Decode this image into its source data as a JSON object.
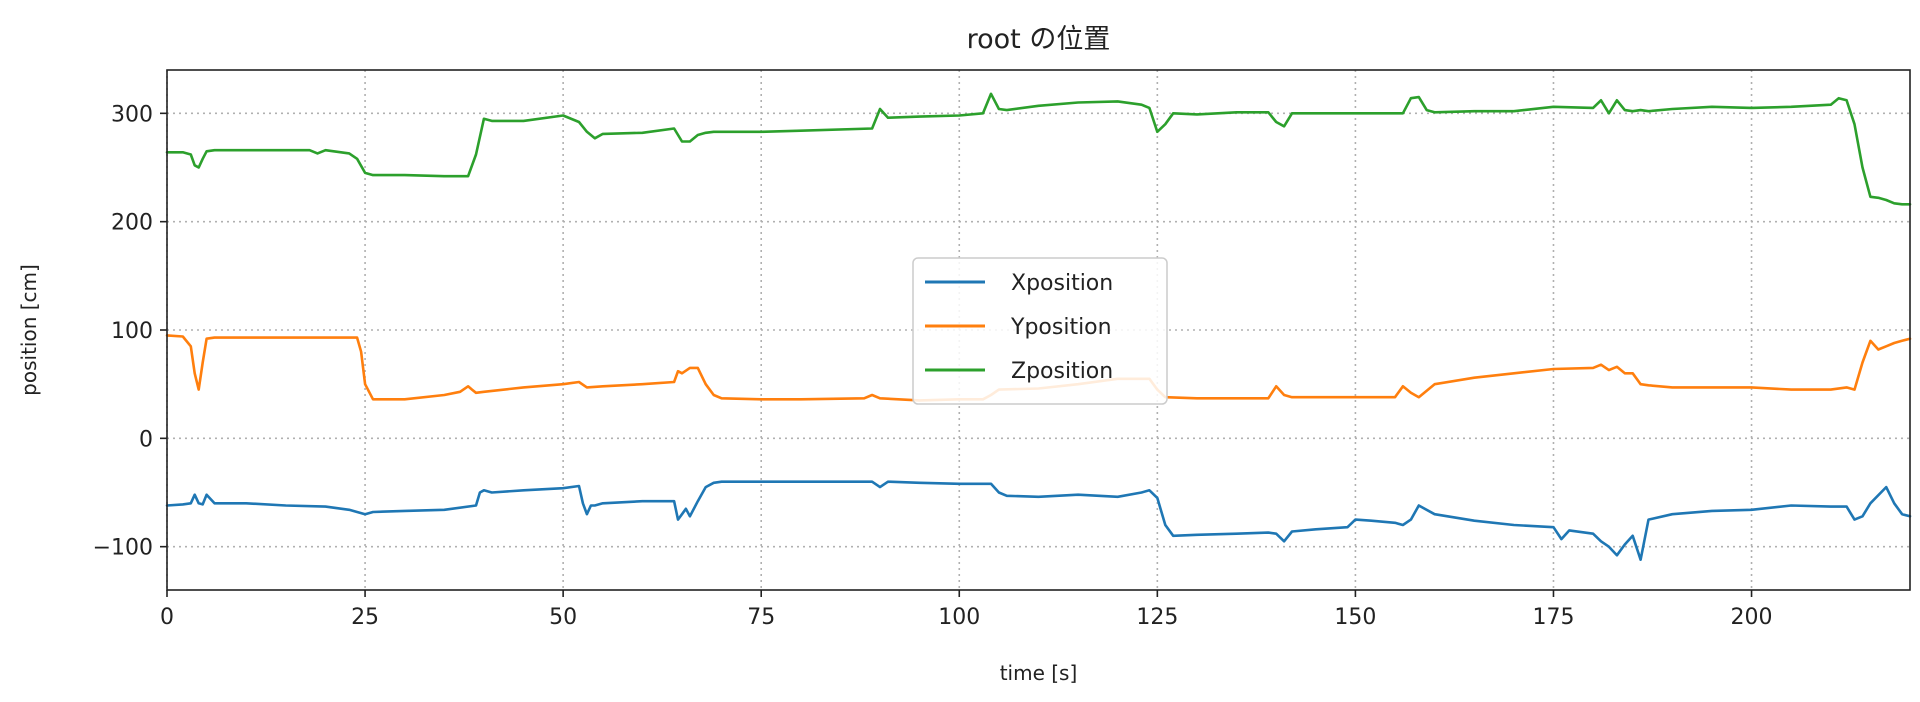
{
  "chart_data": {
    "type": "line",
    "title": "root の位置",
    "xlabel": "time [s]",
    "ylabel": "position [cm]",
    "xlim": [
      0,
      220
    ],
    "ylim": [
      -140,
      340
    ],
    "xticks": [
      0,
      25,
      50,
      75,
      100,
      125,
      150,
      175,
      200
    ],
    "yticks": [
      -100,
      0,
      100,
      200,
      300
    ],
    "xtick_labels": [
      "0",
      "25",
      "50",
      "75",
      "100",
      "125",
      "150",
      "175",
      "200"
    ],
    "ytick_labels": [
      "−100",
      "0",
      "100",
      "200",
      "300"
    ],
    "grid": true,
    "legend_position": "center",
    "series": [
      {
        "name": "Xposition",
        "color": "#1f77b4",
        "x": [
          0,
          2,
          3,
          3.5,
          4,
          4.5,
          5,
          6,
          10,
          15,
          20,
          23,
          24,
          25,
          26,
          30,
          35,
          39,
          39.5,
          40,
          41,
          45,
          50,
          52,
          52.5,
          53,
          53.5,
          54,
          55,
          60,
          64,
          64.5,
          65,
          65.5,
          66,
          67,
          68,
          69,
          70,
          75,
          80,
          89,
          90,
          91,
          95,
          100,
          104,
          105,
          106,
          110,
          115,
          120,
          123,
          124,
          125,
          126,
          127,
          130,
          135,
          139,
          140,
          141,
          142,
          145,
          149,
          150,
          152,
          155,
          156,
          157,
          158,
          160,
          165,
          170,
          175,
          176,
          177,
          180,
          181,
          182,
          183,
          184,
          185,
          186,
          187,
          190,
          195,
          200,
          205,
          210,
          212,
          213,
          214,
          215,
          217,
          218,
          219,
          220
        ],
        "y": [
          -62,
          -61,
          -60,
          -52,
          -60,
          -61,
          -52,
          -60,
          -60,
          -62,
          -63,
          -66,
          -68,
          -70,
          -68,
          -67,
          -66,
          -62,
          -50,
          -48,
          -50,
          -48,
          -46,
          -44,
          -60,
          -70,
          -62,
          -62,
          -60,
          -58,
          -58,
          -75,
          -70,
          -65,
          -72,
          -58,
          -45,
          -41,
          -40,
          -40,
          -40,
          -40,
          -45,
          -40,
          -41,
          -42,
          -42,
          -50,
          -53,
          -54,
          -52,
          -54,
          -50,
          -48,
          -55,
          -80,
          -90,
          -89,
          -88,
          -87,
          -88,
          -95,
          -86,
          -84,
          -82,
          -75,
          -76,
          -78,
          -80,
          -75,
          -62,
          -70,
          -76,
          -80,
          -82,
          -93,
          -85,
          -88,
          -95,
          -100,
          -108,
          -98,
          -90,
          -112,
          -75,
          -70,
          -67,
          -66,
          -62,
          -63,
          -63,
          -75,
          -72,
          -60,
          -45,
          -60,
          -70,
          -72
        ]
      },
      {
        "name": "Yposition",
        "color": "#ff7f0e",
        "x": [
          0,
          2,
          3,
          3.5,
          4,
          4.5,
          5,
          6,
          10,
          15,
          20,
          23,
          24,
          24.5,
          25,
          26,
          30,
          35,
          37,
          38,
          38.5,
          39,
          40,
          45,
          50,
          52,
          53,
          55,
          60,
          64,
          64.5,
          65,
          66,
          67,
          68,
          69,
          70,
          75,
          80,
          88,
          89,
          90,
          95,
          100,
          103,
          104,
          105,
          110,
          115,
          120,
          124,
          125,
          126,
          130,
          135,
          139,
          140,
          141,
          142,
          145,
          150,
          155,
          156,
          157,
          158,
          160,
          165,
          170,
          175,
          180,
          181,
          182,
          183,
          184,
          185,
          186,
          187,
          190,
          195,
          200,
          205,
          210,
          212,
          213,
          214,
          215,
          216,
          217,
          218,
          219,
          220
        ],
        "y": [
          95,
          94,
          85,
          60,
          45,
          70,
          92,
          93,
          93,
          93,
          93,
          93,
          93,
          80,
          50,
          36,
          36,
          40,
          43,
          48,
          45,
          42,
          43,
          47,
          50,
          52,
          47,
          48,
          50,
          52,
          62,
          60,
          65,
          65,
          50,
          40,
          37,
          36,
          36,
          37,
          40,
          37,
          35,
          36,
          36,
          40,
          45,
          46,
          50,
          55,
          55,
          45,
          38,
          37,
          37,
          37,
          48,
          40,
          38,
          38,
          38,
          38,
          48,
          42,
          38,
          50,
          56,
          60,
          64,
          65,
          68,
          63,
          66,
          60,
          60,
          50,
          49,
          47,
          47,
          47,
          45,
          45,
          47,
          45,
          70,
          90,
          82,
          85,
          88,
          90,
          92
        ]
      },
      {
        "name": "Zposition",
        "color": "#2ca02c",
        "x": [
          0,
          2,
          3,
          3.5,
          4,
          4.5,
          5,
          6,
          10,
          15,
          18,
          19,
          20,
          23,
          24,
          25,
          26,
          30,
          35,
          38,
          39,
          40,
          41,
          45,
          50,
          52,
          53,
          54,
          55,
          60,
          64,
          65,
          66,
          67,
          68,
          69,
          70,
          75,
          80,
          89,
          90,
          91,
          95,
          100,
          103,
          104,
          105,
          106,
          110,
          115,
          120,
          123,
          124,
          125,
          126,
          127,
          130,
          135,
          139,
          140,
          141,
          142,
          145,
          150,
          155,
          156,
          157,
          158,
          159,
          160,
          165,
          170,
          175,
          180,
          181,
          182,
          183,
          184,
          185,
          186,
          187,
          190,
          195,
          200,
          205,
          210,
          211,
          212,
          213,
          214,
          215,
          216,
          217,
          218,
          219,
          220
        ],
        "y": [
          264,
          264,
          262,
          252,
          250,
          258,
          265,
          266,
          266,
          266,
          266,
          263,
          266,
          263,
          258,
          245,
          243,
          243,
          242,
          242,
          262,
          295,
          293,
          293,
          298,
          292,
          283,
          277,
          281,
          282,
          286,
          274,
          274,
          280,
          282,
          283,
          283,
          283,
          284,
          286,
          304,
          296,
          297,
          298,
          300,
          318,
          304,
          303,
          307,
          310,
          311,
          308,
          305,
          283,
          290,
          300,
          299,
          301,
          301,
          292,
          288,
          300,
          300,
          300,
          300,
          300,
          314,
          315,
          303,
          301,
          302,
          302,
          306,
          305,
          312,
          300,
          312,
          303,
          302,
          303,
          302,
          304,
          306,
          305,
          306,
          308,
          314,
          312,
          290,
          250,
          223,
          222,
          220,
          217,
          216,
          216
        ]
      }
    ]
  }
}
